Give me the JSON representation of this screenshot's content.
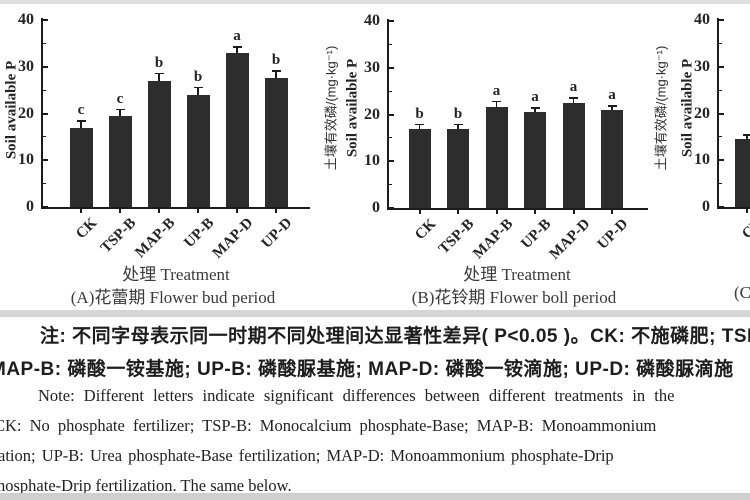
{
  "chart_data": [
    {
      "type": "bar",
      "panel": "A",
      "period_caption": "(A)花蕾期 Flower bud period",
      "xlabel": "处理 Treatment",
      "ylabel_en": "Soil available P",
      "ylabel_cn": "",
      "categories": [
        "CK",
        "TSP-B",
        "MAP-B",
        "UP-B",
        "MAP-D",
        "UP-D"
      ],
      "values": [
        17,
        19.5,
        27,
        24,
        33,
        27.5
      ],
      "errors": [
        1.3,
        1.3,
        1.5,
        1.5,
        1.2,
        1.5
      ],
      "letters": [
        "c",
        "c",
        "b",
        "b",
        "a",
        "b"
      ],
      "ylim": [
        0,
        40
      ],
      "yticks": [
        0,
        10,
        20,
        30,
        40
      ],
      "grid": false,
      "clipped": false
    },
    {
      "type": "bar",
      "panel": "B",
      "period_caption": "(B)花铃期 Flower boll period",
      "xlabel": "处理 Treatment",
      "ylabel_en": "Soil available P",
      "ylabel_cn": "土壤有效磷/(mg·kg⁻¹)",
      "categories": [
        "CK",
        "TSP-B",
        "MAP-B",
        "UP-B",
        "MAP-D",
        "UP-D"
      ],
      "values": [
        17,
        17,
        21.5,
        20.5,
        22.5,
        21
      ],
      "errors": [
        0.8,
        0.8,
        1.2,
        0.8,
        1.0,
        0.8
      ],
      "letters": [
        "b",
        "b",
        "a",
        "a",
        "a",
        "a"
      ],
      "ylim": [
        0,
        40
      ],
      "yticks": [
        0,
        10,
        20,
        30,
        40
      ],
      "grid": false,
      "clipped": false
    },
    {
      "type": "bar",
      "panel": "C",
      "period_caption": "(C",
      "xlabel": "",
      "ylabel_en": "Soil available P",
      "ylabel_cn": "土壤有效磷/(mg·kg⁻¹)",
      "categories": [
        "CK"
      ],
      "values": [
        14.5
      ],
      "errors": [
        0.8
      ],
      "letters": [
        ""
      ],
      "ylim": [
        0,
        40
      ],
      "yticks": [
        0,
        10,
        20,
        30,
        40
      ],
      "grid": false,
      "clipped": true
    }
  ],
  "notes": {
    "cn_line1": "注: 不同字母表示同一时期不同处理间达显著性差异( P<0.05 )。CK: 不施磷肥; TSP",
    "cn_line2": "MAP-B: 磷酸一铵基施; UP-B: 磷酸脲基施; MAP-D: 磷酸一铵滴施; UP-D: 磷酸脲滴施",
    "en_line1": "Note: Different letters indicate significant differences between different treatments in the",
    "en_line2": "CK: No phosphate fertilizer; TSP-B: Monocalcium phosphate-Base; MAP-B: Monoammonium",
    "en_line3": "ation; UP-B: Urea phosphate-Base fertilization; MAP-D: Monoammonium phosphate-Drip",
    "en_line4": "hosphate-Drip fertilization. The same below."
  },
  "colors": {
    "bar": "#2d2d2d",
    "axis": "#1c1c1c",
    "text": "#2a2a2a"
  }
}
